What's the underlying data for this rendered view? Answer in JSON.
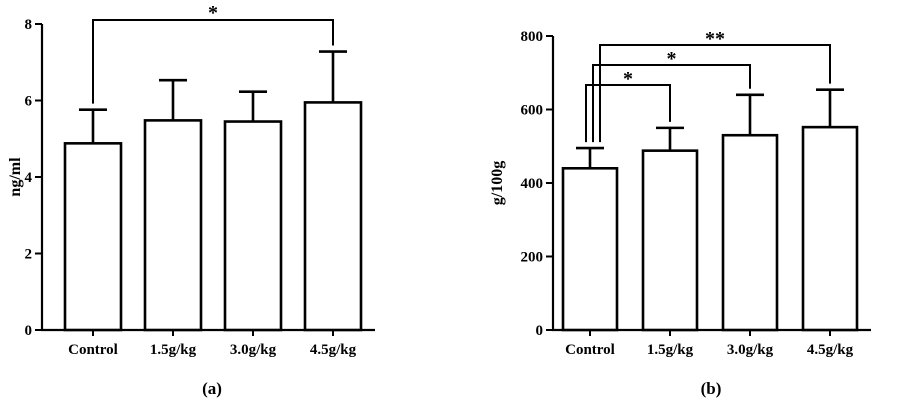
{
  "chart_data": [
    {
      "type": "bar",
      "panel_label": "(a)",
      "ylabel": "ng/ml",
      "ylim": [
        0,
        8
      ],
      "yticks": [
        0,
        2,
        4,
        6,
        8
      ],
      "categories": [
        "Control",
        "1.5g/kg",
        "3.0g/kg",
        "4.5g/kg"
      ],
      "values": [
        4.88,
        5.48,
        5.45,
        5.95
      ],
      "errors": [
        0.88,
        1.05,
        0.78,
        1.33
      ],
      "significance": [
        {
          "from": 0,
          "to": 3,
          "label": "*"
        }
      ]
    },
    {
      "type": "bar",
      "panel_label": "(b)",
      "ylabel": "g/100g",
      "ylim": [
        0,
        800
      ],
      "yticks": [
        0,
        200,
        400,
        600,
        800
      ],
      "categories": [
        "Control",
        "1.5g/kg",
        "3.0g/kg",
        "4.5g/kg"
      ],
      "values": [
        440,
        488,
        530,
        552
      ],
      "errors": [
        55,
        62,
        110,
        102
      ],
      "significance": [
        {
          "from": 0,
          "to": 1,
          "label": "*"
        },
        {
          "from": 0,
          "to": 2,
          "label": "*"
        },
        {
          "from": 0,
          "to": 3,
          "label": "**"
        }
      ]
    }
  ]
}
